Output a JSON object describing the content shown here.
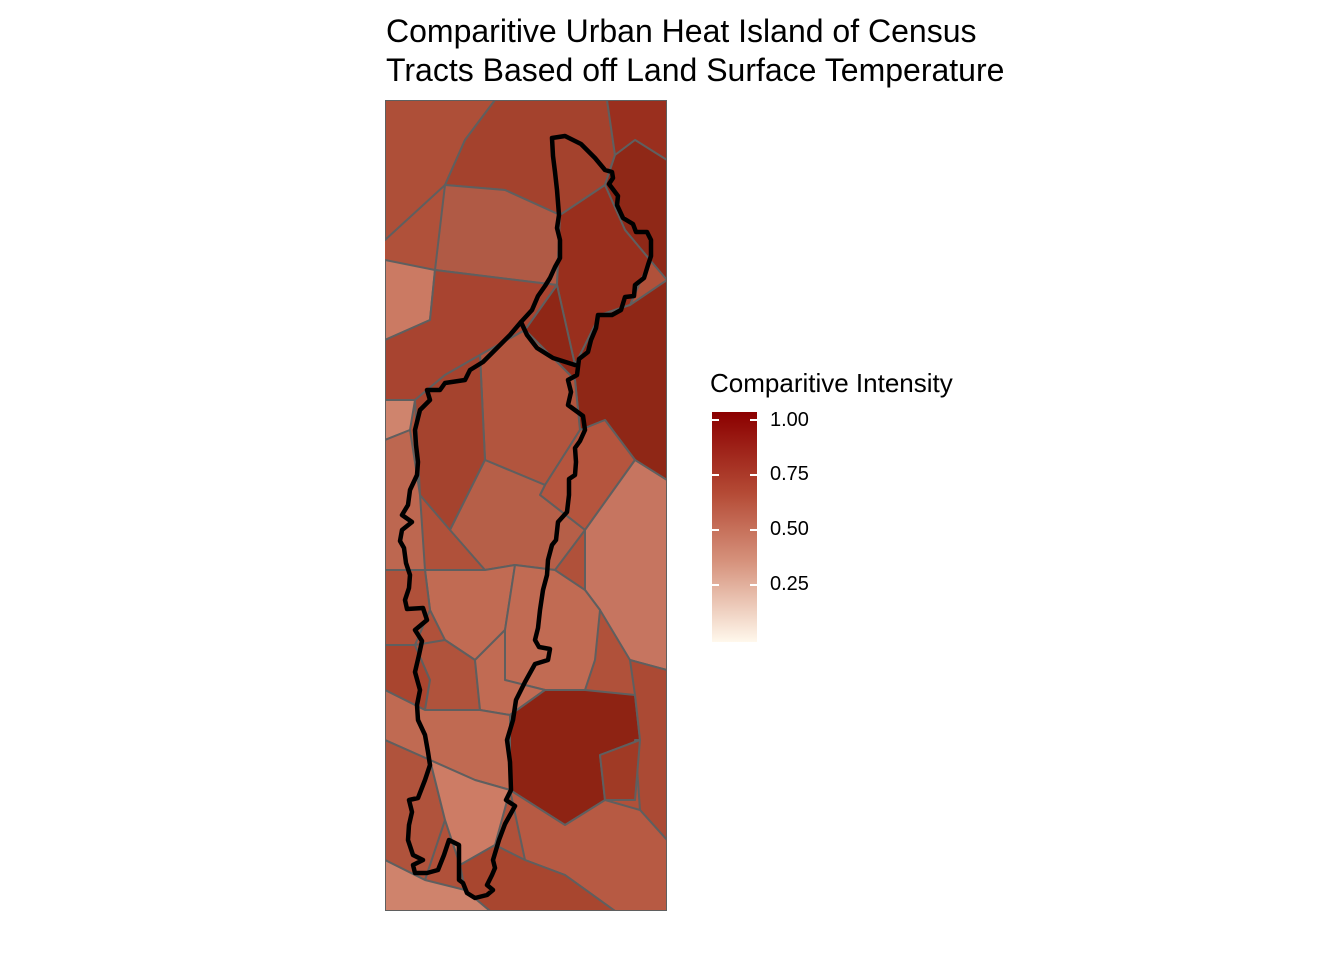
{
  "title": {
    "line1": "Comparitive Urban Heat Island of Census",
    "line2": "Tracts Based off Land Surface Temperature"
  },
  "legend": {
    "title": "Comparitive Intensity",
    "ticks": [
      "1.00",
      "0.75",
      "0.50",
      "0.25"
    ],
    "colors": {
      "high": "#8B0000",
      "mid": "#b44a35",
      "low": "#fff8ec"
    },
    "range": [
      0,
      1
    ]
  },
  "map": {
    "tract_border_color": "#5f5f5f",
    "highlight_border_color": "#000000"
  }
}
